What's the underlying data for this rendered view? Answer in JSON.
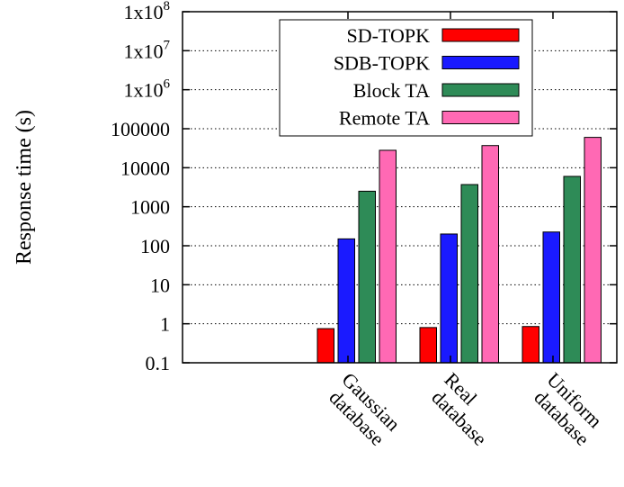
{
  "chart_data": {
    "type": "bar",
    "ylabel": "Response time (s)",
    "y_scale": "log",
    "ylim": [
      0.1,
      100000000
    ],
    "y_ticks": [
      {
        "value": 0.1,
        "label": "0.1"
      },
      {
        "value": 1,
        "label": "1"
      },
      {
        "value": 10,
        "label": "10"
      },
      {
        "value": 100,
        "label": "100"
      },
      {
        "value": 1000,
        "label": "1000"
      },
      {
        "value": 10000,
        "label": "10000"
      },
      {
        "value": 100000,
        "label": "100000"
      },
      {
        "value": 1000000,
        "label": "1x10",
        "exp": "6"
      },
      {
        "value": 10000000,
        "label": "1x10",
        "exp": "7"
      },
      {
        "value": 100000000,
        "label": "1x10",
        "exp": "8"
      }
    ],
    "categories": [
      [
        "Gaussian",
        "database"
      ],
      [
        "Real",
        "database"
      ],
      [
        "Uniform",
        "database"
      ]
    ],
    "series": [
      {
        "name": "SD-TOPK",
        "color": "#ff0000",
        "values": [
          0.75,
          0.8,
          0.85
        ]
      },
      {
        "name": "SDB-TOPK",
        "color": "#1a1aff",
        "values": [
          150,
          200,
          225
        ]
      },
      {
        "name": "Block TA",
        "color": "#2e8b57",
        "values": [
          2500,
          3700,
          6000
        ]
      },
      {
        "name": "Remote TA",
        "color": "#ff69b4",
        "values": [
          28000,
          37000,
          60000
        ]
      }
    ],
    "grid": "horizontal-dotted",
    "legend_position": "top-center"
  }
}
